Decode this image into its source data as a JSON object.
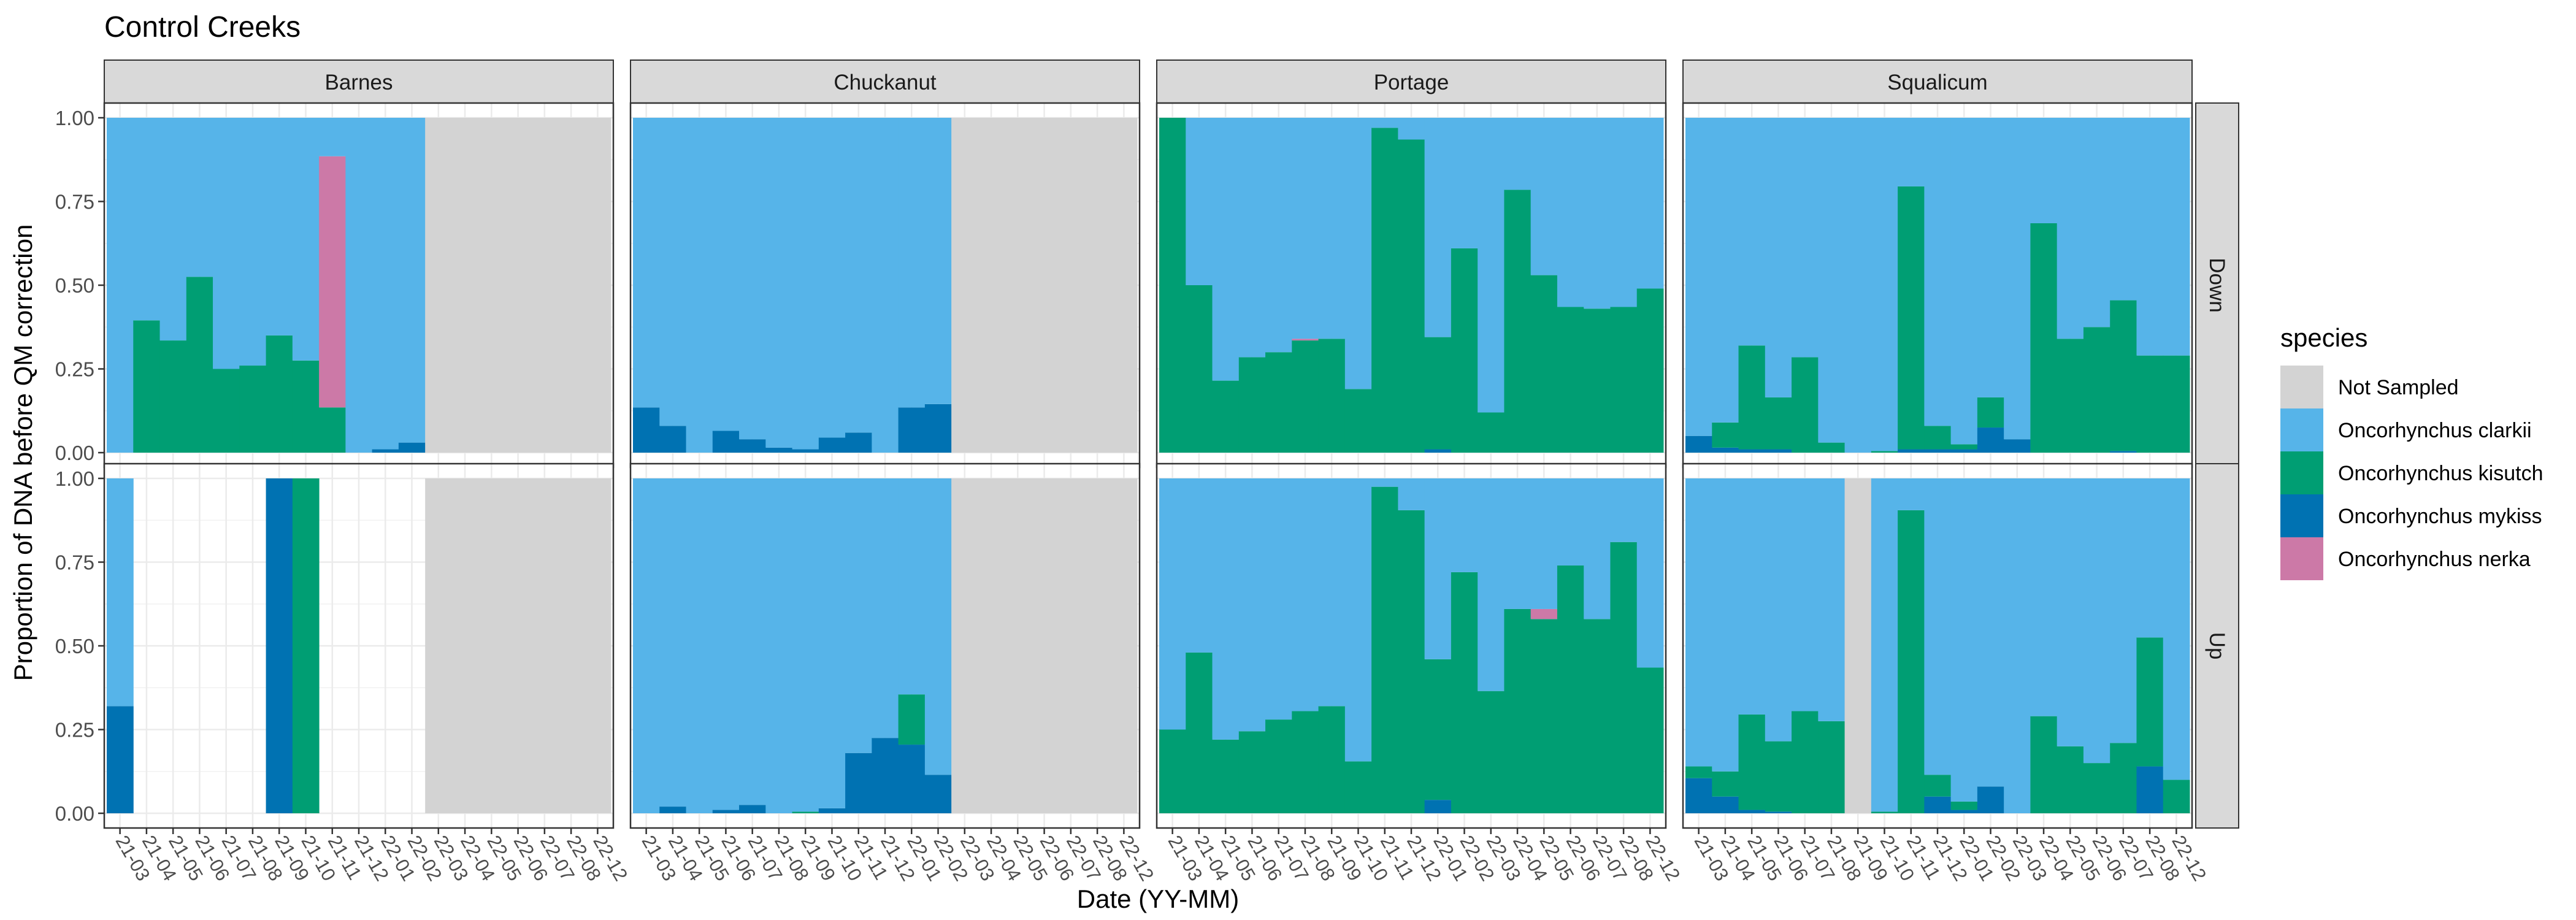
{
  "chart_data": {
    "type": "bar",
    "title": "Control Creeks",
    "xlabel": "Date (YY-MM)",
    "ylabel": "Proportion of DNA before QM correction",
    "ylim": [
      0,
      1
    ],
    "y_ticks": [
      "0.00",
      "0.25",
      "0.50",
      "0.75",
      "1.00"
    ],
    "grid": true,
    "legend_position": "right",
    "legend_title": "species",
    "x_ticks": [
      "21-03",
      "21-04",
      "21-05",
      "21-06",
      "21-07",
      "21-08",
      "21-09",
      "21-10",
      "21-11",
      "21-12",
      "22-01",
      "22-02",
      "22-03",
      "22-04",
      "22-05",
      "22-06",
      "22-07",
      "22-08",
      "22-12"
    ],
    "x_tick_note": "Panel x-axis labels are printed as overlapping rotated YY-MM dates; 19 columns per panel.",
    "column_labels": [
      "Barnes",
      "Chuckanut",
      "Portage",
      "Squalicum"
    ],
    "row_labels": [
      "Down",
      "Up"
    ],
    "series": [
      {
        "name": "Not Sampled",
        "color": "#D3D3D3"
      },
      {
        "name": "Oncorhynchus clarkii",
        "color": "#56B4E9"
      },
      {
        "name": "Oncorhynchus kisutch",
        "color": "#009E73"
      },
      {
        "name": "Oncorhynchus mykiss",
        "color": "#0072B2"
      },
      {
        "name": "Oncorhynchus nerka",
        "color": "#CC79A7"
      }
    ],
    "panels": [
      {
        "column": "Barnes",
        "row": "Down",
        "bars": [
          {
            "x": "21-03",
            "mykiss": 0,
            "kisutch": 0,
            "nerka": 0
          },
          {
            "x": "21-04",
            "mykiss": 0,
            "kisutch": 0.395,
            "nerka": 0
          },
          {
            "x": "21-05",
            "mykiss": 0,
            "kisutch": 0.335,
            "nerka": 0
          },
          {
            "x": "21-06",
            "mykiss": 0,
            "kisutch": 0.525,
            "nerka": 0
          },
          {
            "x": "21-07",
            "mykiss": 0,
            "kisutch": 0.25,
            "nerka": 0
          },
          {
            "x": "21-08",
            "mykiss": 0,
            "kisutch": 0.26,
            "nerka": 0
          },
          {
            "x": "21-09",
            "mykiss": 0,
            "kisutch": 0.35,
            "nerka": 0
          },
          {
            "x": "21-10",
            "mykiss": 0,
            "kisutch": 0.275,
            "nerka": 0
          },
          {
            "x": "21-11",
            "mykiss": 0,
            "kisutch": 0.135,
            "nerka": 0.75
          },
          {
            "x": "21-12",
            "mykiss": 0,
            "kisutch": 0,
            "nerka": 0
          },
          {
            "x": "22-01",
            "mykiss": 0.01,
            "kisutch": 0,
            "nerka": 0
          },
          {
            "x": "22-02",
            "mykiss": 0.03,
            "kisutch": 0,
            "nerka": 0
          },
          {
            "x": "22-03",
            "not_sampled": true
          },
          {
            "x": "22-04",
            "not_sampled": true
          },
          {
            "x": "22-05",
            "not_sampled": true
          },
          {
            "x": "22-06",
            "not_sampled": true
          },
          {
            "x": "22-07",
            "not_sampled": true
          },
          {
            "x": "22-08",
            "not_sampled": true
          },
          {
            "x": "22-12",
            "not_sampled": true
          }
        ]
      },
      {
        "column": "Chuckanut",
        "row": "Down",
        "bars": [
          {
            "x": "21-03",
            "mykiss": 0.135,
            "kisutch": 0,
            "nerka": 0
          },
          {
            "x": "21-04",
            "mykiss": 0.08,
            "kisutch": 0,
            "nerka": 0
          },
          {
            "x": "21-05",
            "mykiss": 0,
            "kisutch": 0,
            "nerka": 0
          },
          {
            "x": "21-06",
            "mykiss": 0.065,
            "kisutch": 0,
            "nerka": 0
          },
          {
            "x": "21-07",
            "mykiss": 0.04,
            "kisutch": 0,
            "nerka": 0
          },
          {
            "x": "21-08",
            "mykiss": 0.015,
            "kisutch": 0,
            "nerka": 0
          },
          {
            "x": "21-09",
            "mykiss": 0.01,
            "kisutch": 0,
            "nerka": 0
          },
          {
            "x": "21-10",
            "mykiss": 0.045,
            "kisutch": 0,
            "nerka": 0
          },
          {
            "x": "21-11",
            "mykiss": 0.06,
            "kisutch": 0,
            "nerka": 0
          },
          {
            "x": "21-12",
            "mykiss": 0,
            "kisutch": 0,
            "nerka": 0
          },
          {
            "x": "22-01",
            "mykiss": 0.135,
            "kisutch": 0,
            "nerka": 0
          },
          {
            "x": "22-02",
            "mykiss": 0.145,
            "kisutch": 0,
            "nerka": 0
          },
          {
            "x": "22-03",
            "not_sampled": true
          },
          {
            "x": "22-04",
            "not_sampled": true
          },
          {
            "x": "22-05",
            "not_sampled": true
          },
          {
            "x": "22-06",
            "not_sampled": true
          },
          {
            "x": "22-07",
            "not_sampled": true
          },
          {
            "x": "22-08",
            "not_sampled": true
          },
          {
            "x": "22-12",
            "not_sampled": true
          }
        ]
      },
      {
        "column": "Portage",
        "row": "Down",
        "bars": [
          {
            "x": "21-03",
            "mykiss": 0,
            "kisutch": 1.0,
            "nerka": 0
          },
          {
            "x": "21-04",
            "mykiss": 0,
            "kisutch": 0.5,
            "nerka": 0
          },
          {
            "x": "21-05",
            "mykiss": 0,
            "kisutch": 0.215,
            "nerka": 0
          },
          {
            "x": "21-06",
            "mykiss": 0,
            "kisutch": 0.285,
            "nerka": 0
          },
          {
            "x": "21-07",
            "mykiss": 0,
            "kisutch": 0.3,
            "nerka": 0
          },
          {
            "x": "21-08",
            "mykiss": 0,
            "kisutch": 0.335,
            "nerka": 0.005
          },
          {
            "x": "21-09",
            "mykiss": 0,
            "kisutch": 0.34,
            "nerka": 0
          },
          {
            "x": "21-10",
            "mykiss": 0,
            "kisutch": 0.19,
            "nerka": 0
          },
          {
            "x": "21-11",
            "mykiss": 0,
            "kisutch": 0.97,
            "nerka": 0
          },
          {
            "x": "21-12",
            "mykiss": 0,
            "kisutch": 0.935,
            "nerka": 0
          },
          {
            "x": "22-01",
            "mykiss": 0.01,
            "kisutch": 0.335,
            "nerka": 0
          },
          {
            "x": "22-02",
            "mykiss": 0,
            "kisutch": 0.61,
            "nerka": 0
          },
          {
            "x": "22-03",
            "mykiss": 0,
            "kisutch": 0.12,
            "nerka": 0
          },
          {
            "x": "22-04",
            "mykiss": 0,
            "kisutch": 0.785,
            "nerka": 0
          },
          {
            "x": "22-05",
            "mykiss": 0,
            "kisutch": 0.53,
            "nerka": 0
          },
          {
            "x": "22-06",
            "mykiss": 0,
            "kisutch": 0.435,
            "nerka": 0
          },
          {
            "x": "22-07",
            "mykiss": 0,
            "kisutch": 0.43,
            "nerka": 0
          },
          {
            "x": "22-08",
            "mykiss": 0,
            "kisutch": 0.435,
            "nerka": 0
          },
          {
            "x": "22-12",
            "mykiss": 0,
            "kisutch": 0.49,
            "nerka": 0
          }
        ]
      },
      {
        "column": "Squalicum",
        "row": "Down",
        "bars": [
          {
            "x": "21-03",
            "mykiss": 0.05,
            "kisutch": 0,
            "nerka": 0
          },
          {
            "x": "21-04",
            "mykiss": 0.015,
            "kisutch": 0.075,
            "nerka": 0
          },
          {
            "x": "21-05",
            "mykiss": 0.01,
            "kisutch": 0.31,
            "nerka": 0
          },
          {
            "x": "21-06",
            "mykiss": 0.01,
            "kisutch": 0.155,
            "nerka": 0
          },
          {
            "x": "21-07",
            "mykiss": 0,
            "kisutch": 0.285,
            "nerka": 0
          },
          {
            "x": "21-08",
            "mykiss": 0,
            "kisutch": 0.03,
            "nerka": 0
          },
          {
            "x": "21-09",
            "mykiss": 0,
            "kisutch": 0,
            "nerka": 0
          },
          {
            "x": "21-10",
            "mykiss": 0,
            "kisutch": 0.005,
            "nerka": 0
          },
          {
            "x": "21-11",
            "mykiss": 0.01,
            "kisutch": 0.785,
            "nerka": 0
          },
          {
            "x": "21-12",
            "mykiss": 0.01,
            "kisutch": 0.07,
            "nerka": 0
          },
          {
            "x": "22-01",
            "mykiss": 0.01,
            "kisutch": 0.015,
            "nerka": 0
          },
          {
            "x": "22-02",
            "mykiss": 0.075,
            "kisutch": 0.09,
            "nerka": 0
          },
          {
            "x": "22-03",
            "mykiss": 0.04,
            "kisutch": 0,
            "nerka": 0
          },
          {
            "x": "22-04",
            "mykiss": 0,
            "kisutch": 0.685,
            "nerka": 0
          },
          {
            "x": "22-05",
            "mykiss": 0,
            "kisutch": 0.34,
            "nerka": 0
          },
          {
            "x": "22-06",
            "mykiss": 0,
            "kisutch": 0.375,
            "nerka": 0
          },
          {
            "x": "22-07",
            "mykiss": 0.005,
            "kisutch": 0.45,
            "nerka": 0
          },
          {
            "x": "22-08",
            "mykiss": 0,
            "kisutch": 0.29,
            "nerka": 0
          },
          {
            "x": "22-12",
            "mykiss": 0,
            "kisutch": 0.29,
            "nerka": 0
          }
        ]
      },
      {
        "column": "Barnes",
        "row": "Up",
        "bars": [
          {
            "x": "21-03",
            "mykiss": 0.32,
            "kisutch": 0,
            "nerka": 0
          },
          {
            "x": "21-04",
            "empty": true
          },
          {
            "x": "21-05",
            "empty": true
          },
          {
            "x": "21-06",
            "empty": true
          },
          {
            "x": "21-07",
            "empty": true
          },
          {
            "x": "21-08",
            "empty": true
          },
          {
            "x": "21-09",
            "mykiss": 1.0,
            "kisutch": 0,
            "nerka": 0
          },
          {
            "x": "21-10",
            "mykiss": 0,
            "kisutch": 1.0,
            "nerka": 0
          },
          {
            "x": "21-11",
            "empty": true
          },
          {
            "x": "21-12",
            "empty": true
          },
          {
            "x": "22-01",
            "empty": true
          },
          {
            "x": "22-02",
            "empty": true
          },
          {
            "x": "22-03",
            "not_sampled": true
          },
          {
            "x": "22-04",
            "not_sampled": true
          },
          {
            "x": "22-05",
            "not_sampled": true
          },
          {
            "x": "22-06",
            "not_sampled": true
          },
          {
            "x": "22-07",
            "not_sampled": true
          },
          {
            "x": "22-08",
            "not_sampled": true
          },
          {
            "x": "22-12",
            "not_sampled": true
          }
        ]
      },
      {
        "column": "Chuckanut",
        "row": "Up",
        "bars": [
          {
            "x": "21-03",
            "mykiss": 0,
            "kisutch": 0,
            "nerka": 0
          },
          {
            "x": "21-04",
            "mykiss": 0.02,
            "kisutch": 0,
            "nerka": 0
          },
          {
            "x": "21-05",
            "mykiss": 0,
            "kisutch": 0,
            "nerka": 0
          },
          {
            "x": "21-06",
            "mykiss": 0.01,
            "kisutch": 0,
            "nerka": 0
          },
          {
            "x": "21-07",
            "mykiss": 0.025,
            "kisutch": 0,
            "nerka": 0
          },
          {
            "x": "21-08",
            "mykiss": 0,
            "kisutch": 0,
            "nerka": 0
          },
          {
            "x": "21-09",
            "mykiss": 0,
            "kisutch": 0.005,
            "nerka": 0
          },
          {
            "x": "21-10",
            "mykiss": 0.015,
            "kisutch": 0,
            "nerka": 0
          },
          {
            "x": "21-11",
            "mykiss": 0.18,
            "kisutch": 0,
            "nerka": 0
          },
          {
            "x": "21-12",
            "mykiss": 0.225,
            "kisutch": 0,
            "nerka": 0
          },
          {
            "x": "22-01",
            "mykiss": 0.205,
            "kisutch": 0.15,
            "nerka": 0
          },
          {
            "x": "22-02",
            "mykiss": 0.115,
            "kisutch": 0,
            "nerka": 0
          },
          {
            "x": "22-03",
            "not_sampled": true
          },
          {
            "x": "22-04",
            "not_sampled": true
          },
          {
            "x": "22-05",
            "not_sampled": true
          },
          {
            "x": "22-06",
            "not_sampled": true
          },
          {
            "x": "22-07",
            "not_sampled": true
          },
          {
            "x": "22-08",
            "not_sampled": true
          },
          {
            "x": "22-12",
            "not_sampled": true
          }
        ]
      },
      {
        "column": "Portage",
        "row": "Up",
        "bars": [
          {
            "x": "21-03",
            "mykiss": 0,
            "kisutch": 0.25,
            "nerka": 0
          },
          {
            "x": "21-04",
            "mykiss": 0,
            "kisutch": 0.48,
            "nerka": 0
          },
          {
            "x": "21-05",
            "mykiss": 0,
            "kisutch": 0.22,
            "nerka": 0
          },
          {
            "x": "21-06",
            "mykiss": 0,
            "kisutch": 0.245,
            "nerka": 0
          },
          {
            "x": "21-07",
            "mykiss": 0,
            "kisutch": 0.28,
            "nerka": 0
          },
          {
            "x": "21-08",
            "mykiss": 0,
            "kisutch": 0.305,
            "nerka": 0
          },
          {
            "x": "21-09",
            "mykiss": 0,
            "kisutch": 0.32,
            "nerka": 0
          },
          {
            "x": "21-10",
            "mykiss": 0,
            "kisutch": 0.155,
            "nerka": 0
          },
          {
            "x": "21-11",
            "mykiss": 0,
            "kisutch": 0.975,
            "nerka": 0
          },
          {
            "x": "21-12",
            "mykiss": 0,
            "kisutch": 0.905,
            "nerka": 0
          },
          {
            "x": "22-01",
            "mykiss": 0.04,
            "kisutch": 0.42,
            "nerka": 0
          },
          {
            "x": "22-02",
            "mykiss": 0,
            "kisutch": 0.72,
            "nerka": 0
          },
          {
            "x": "22-03",
            "mykiss": 0,
            "kisutch": 0.365,
            "nerka": 0
          },
          {
            "x": "22-04",
            "mykiss": 0,
            "kisutch": 0.61,
            "nerka": 0
          },
          {
            "x": "22-05",
            "mykiss": 0,
            "kisutch": 0.58,
            "nerka": 0.03
          },
          {
            "x": "22-06",
            "mykiss": 0,
            "kisutch": 0.74,
            "nerka": 0
          },
          {
            "x": "22-07",
            "mykiss": 0,
            "kisutch": 0.58,
            "nerka": 0
          },
          {
            "x": "22-08",
            "mykiss": 0,
            "kisutch": 0.81,
            "nerka": 0
          },
          {
            "x": "22-12",
            "mykiss": 0,
            "kisutch": 0.435,
            "nerka": 0
          }
        ]
      },
      {
        "column": "Squalicum",
        "row": "Up",
        "bars": [
          {
            "x": "21-03",
            "mykiss": 0.105,
            "kisutch": 0.035,
            "nerka": 0
          },
          {
            "x": "21-04",
            "mykiss": 0.05,
            "kisutch": 0.075,
            "nerka": 0
          },
          {
            "x": "21-05",
            "mykiss": 0.01,
            "kisutch": 0.285,
            "nerka": 0
          },
          {
            "x": "21-06",
            "mykiss": 0.005,
            "kisutch": 0.21,
            "nerka": 0
          },
          {
            "x": "21-07",
            "mykiss": 0,
            "kisutch": 0.305,
            "nerka": 0
          },
          {
            "x": "21-08",
            "mykiss": 0,
            "kisutch": 0.275,
            "nerka": 0
          },
          {
            "x": "21-09",
            "not_sampled": true
          },
          {
            "x": "21-10",
            "mykiss": 0,
            "kisutch": 0.005,
            "nerka": 0
          },
          {
            "x": "21-11",
            "mykiss": 0,
            "kisutch": 0.905,
            "nerka": 0
          },
          {
            "x": "21-12",
            "mykiss": 0.05,
            "kisutch": 0.065,
            "nerka": 0
          },
          {
            "x": "22-01",
            "mykiss": 0.01,
            "kisutch": 0.025,
            "nerka": 0
          },
          {
            "x": "22-02",
            "mykiss": 0.08,
            "kisutch": 0,
            "nerka": 0
          },
          {
            "x": "22-03",
            "mykiss": 0,
            "kisutch": 0,
            "nerka": 0
          },
          {
            "x": "22-04",
            "mykiss": 0,
            "kisutch": 0.29,
            "nerka": 0
          },
          {
            "x": "22-05",
            "mykiss": 0,
            "kisutch": 0.2,
            "nerka": 0
          },
          {
            "x": "22-06",
            "mykiss": 0,
            "kisutch": 0.15,
            "nerka": 0
          },
          {
            "x": "22-07",
            "mykiss": 0,
            "kisutch": 0.21,
            "nerka": 0
          },
          {
            "x": "22-08",
            "mykiss": 0.14,
            "kisutch": 0.385,
            "nerka": 0
          },
          {
            "x": "22-12",
            "mykiss": 0,
            "kisutch": 0.1,
            "nerka": 0
          }
        ]
      }
    ]
  }
}
